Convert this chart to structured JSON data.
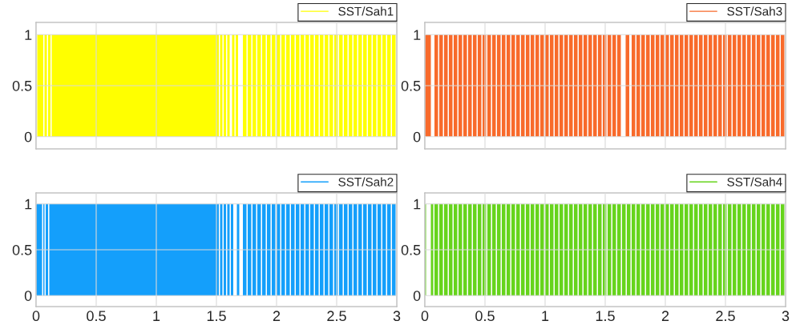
{
  "chart_data": [
    {
      "type": "area",
      "xlim": [
        0,
        3
      ],
      "ylim": [
        -0.12,
        1.12
      ],
      "xticks": [
        0,
        0.5,
        1,
        1.5,
        2,
        2.5,
        3
      ],
      "yticks": [
        0,
        0.5,
        1
      ],
      "grid": true,
      "legend": "top right",
      "tick_labels": "y",
      "series": [
        {
          "name": "SST/Sah1",
          "color": "#ffff00",
          "x": [
            0,
            0.01,
            0.06,
            0.07,
            0.09,
            0.1,
            0.12,
            0.13,
            1.52,
            1.53,
            1.55,
            1.56,
            1.58,
            1.59,
            1.61,
            1.63,
            1.65,
            1.66,
            1.68,
            1.72,
            1.75,
            1.76,
            1.79,
            1.8,
            1.83,
            1.84,
            1.87,
            1.88,
            1.91,
            1.92,
            1.95,
            1.96,
            1.99,
            2,
            2.03,
            2.04,
            2.07,
            2.08,
            2.11,
            2.12,
            2.15,
            2.16,
            2.19,
            2.2,
            2.23,
            2.24,
            2.27,
            2.28,
            2.31,
            2.32,
            2.35,
            2.36,
            2.39,
            2.4,
            2.43,
            2.44,
            2.47,
            2.48,
            2.51,
            2.52,
            2.55,
            2.56,
            2.59,
            2.6,
            2.63,
            2.64,
            2.67,
            2.68,
            2.71,
            2.72,
            2.75,
            2.76,
            2.79,
            2.8,
            2.83,
            2.84,
            2.87,
            2.88,
            2.91,
            2.92,
            2.95,
            2.96,
            2.99
          ],
          "values": [
            0,
            1,
            0,
            1,
            0,
            1,
            0,
            1,
            0,
            1,
            0,
            1,
            0,
            1,
            0,
            1,
            0,
            1,
            0,
            1,
            0,
            1,
            0,
            1,
            0,
            1,
            0,
            1,
            0,
            1,
            0,
            1,
            0,
            1,
            0,
            1,
            0,
            1,
            0,
            1,
            0,
            1,
            0,
            1,
            0,
            1,
            0,
            1,
            0,
            1,
            0,
            1,
            0,
            1,
            0,
            1,
            0,
            1,
            0,
            1,
            0,
            1,
            0,
            1,
            0,
            1,
            0,
            1,
            0,
            1,
            0,
            1,
            0,
            1,
            0,
            1,
            0,
            1,
            0,
            1,
            0,
            1,
            0
          ]
        }
      ]
    },
    {
      "type": "area",
      "xlim": [
        0,
        3
      ],
      "ylim": [
        -0.12,
        1.12
      ],
      "xticks": [
        0,
        0.5,
        1,
        1.5,
        2,
        2.5,
        3
      ],
      "yticks": [
        0,
        0.5,
        1
      ],
      "grid": true,
      "legend": "top right",
      "tick_labels": "y",
      "series": [
        {
          "name": "SST/Sah3",
          "color": "#f86a2b",
          "x": [
            0,
            0.05,
            0.08,
            0.11,
            0.12,
            0.15,
            0.16,
            0.19,
            0.2,
            0.23,
            0.24,
            0.27,
            0.28,
            0.31,
            0.32,
            0.35,
            0.36,
            0.39,
            0.4,
            0.43,
            0.44,
            0.47,
            0.48,
            0.51,
            0.52,
            0.55,
            0.56,
            0.59,
            0.6,
            0.63,
            0.64,
            0.67,
            0.68,
            0.71,
            0.72,
            0.75,
            0.76,
            0.79,
            0.8,
            0.83,
            0.84,
            0.87,
            0.88,
            0.91,
            0.92,
            0.95,
            0.96,
            0.99,
            1,
            1.03,
            1.04,
            1.07,
            1.08,
            1.11,
            1.12,
            1.15,
            1.16,
            1.19,
            1.2,
            1.23,
            1.24,
            1.27,
            1.28,
            1.31,
            1.32,
            1.35,
            1.36,
            1.39,
            1.4,
            1.43,
            1.44,
            1.47,
            1.48,
            1.51,
            1.52,
            1.55,
            1.56,
            1.59,
            1.6,
            1.63,
            1.67,
            1.7,
            1.72,
            1.75,
            1.76,
            1.79,
            1.8,
            1.83,
            1.84,
            1.87,
            1.88,
            1.91,
            1.92,
            1.95,
            1.96,
            1.99,
            2,
            2.03,
            2.04,
            2.07,
            2.08,
            2.11,
            2.12,
            2.15,
            2.16,
            2.19,
            2.2,
            2.23,
            2.24,
            2.27,
            2.28,
            2.31,
            2.32,
            2.35,
            2.36,
            2.39,
            2.4,
            2.43,
            2.44,
            2.47,
            2.48,
            2.51,
            2.52,
            2.55,
            2.56,
            2.59,
            2.6,
            2.63,
            2.64,
            2.67,
            2.68,
            2.71,
            2.72,
            2.75,
            2.76,
            2.79,
            2.8,
            2.83,
            2.84,
            2.87,
            2.88,
            2.91,
            2.92,
            2.95,
            2.96,
            2.99
          ],
          "values": [
            1,
            0,
            1,
            0,
            1,
            0,
            1,
            0,
            1,
            0,
            1,
            0,
            1,
            0,
            1,
            0,
            1,
            0,
            1,
            0,
            1,
            0,
            1,
            0,
            1,
            0,
            1,
            0,
            1,
            0,
            1,
            0,
            1,
            0,
            1,
            0,
            1,
            0,
            1,
            0,
            1,
            0,
            1,
            0,
            1,
            0,
            1,
            0,
            1,
            0,
            1,
            0,
            1,
            0,
            1,
            0,
            1,
            0,
            1,
            0,
            1,
            0,
            1,
            0,
            1,
            0,
            1,
            0,
            1,
            0,
            1,
            0,
            1,
            0,
            1,
            0,
            1,
            0,
            1,
            0,
            1,
            0,
            1,
            0,
            1,
            0,
            1,
            0,
            1,
            0,
            1,
            0,
            1,
            0,
            1,
            0,
            1,
            0,
            1,
            0,
            1,
            0,
            1,
            0,
            1,
            0,
            1,
            0,
            1,
            0,
            1,
            0,
            1,
            0,
            1,
            0,
            1,
            0,
            1,
            0,
            1,
            0,
            1,
            0,
            1,
            0,
            1,
            0,
            1,
            0,
            1,
            0,
            1,
            0,
            1,
            0,
            1,
            0,
            1,
            0,
            1,
            0,
            1,
            0,
            1,
            0
          ]
        }
      ]
    },
    {
      "type": "area",
      "xlim": [
        0,
        3
      ],
      "ylim": [
        -0.12,
        1.12
      ],
      "xticks": [
        0,
        0.5,
        1,
        1.5,
        2,
        2.5,
        3
      ],
      "yticks": [
        0,
        0.5,
        1
      ],
      "grid": true,
      "legend": "top right",
      "series": [
        {
          "name": "SST/Sah2",
          "color": "#149ffb",
          "x": [
            0,
            0.05,
            0.06,
            0.07,
            0.08,
            0.1,
            0.11,
            1.52,
            1.53,
            1.55,
            1.56,
            1.58,
            1.59,
            1.61,
            1.62,
            1.64,
            1.67,
            1.69,
            1.72,
            1.75,
            1.76,
            1.79,
            1.8,
            1.83,
            1.84,
            1.87,
            1.88,
            1.91,
            1.92,
            1.95,
            1.96,
            1.99,
            2,
            2.03,
            2.04,
            2.07,
            2.08,
            2.11,
            2.12,
            2.15,
            2.16,
            2.19,
            2.2,
            2.23,
            2.24,
            2.27,
            2.28,
            2.31,
            2.32,
            2.35,
            2.36,
            2.39,
            2.4,
            2.43,
            2.44,
            2.47,
            2.48,
            2.51,
            2.52,
            2.55,
            2.56,
            2.59,
            2.6,
            2.63,
            2.64,
            2.67,
            2.68,
            2.71,
            2.72,
            2.75,
            2.76,
            2.79,
            2.8,
            2.83,
            2.84,
            2.87,
            2.88,
            2.91,
            2.92,
            2.95,
            2.96,
            2.99
          ],
          "values": [
            1,
            0,
            1,
            0,
            1,
            0,
            1,
            0,
            1,
            0,
            1,
            0,
            1,
            0,
            1,
            0,
            1,
            0,
            1,
            0,
            1,
            0,
            1,
            0,
            1,
            0,
            1,
            0,
            1,
            0,
            1,
            0,
            1,
            0,
            1,
            0,
            1,
            0,
            1,
            0,
            1,
            0,
            1,
            0,
            1,
            0,
            1,
            0,
            1,
            0,
            1,
            0,
            1,
            0,
            1,
            0,
            1,
            0,
            1,
            0,
            1,
            0,
            1,
            0,
            1,
            0,
            1,
            0,
            1,
            0,
            1,
            0,
            1,
            0,
            1,
            0,
            1,
            0,
            1,
            0,
            1,
            0
          ]
        }
      ]
    },
    {
      "type": "area",
      "xlim": [
        0,
        3
      ],
      "ylim": [
        -0.12,
        1.12
      ],
      "xticks": [
        0,
        0.5,
        1,
        1.5,
        2,
        2.5,
        3
      ],
      "yticks": [
        0,
        0.5,
        1
      ],
      "grid": true,
      "legend": "top right",
      "series": [
        {
          "name": "SST/Sah4",
          "color": "#66d41c",
          "x": [
            0,
            0.01,
            0.05,
            0.07,
            0.08,
            0.11,
            0.12,
            0.15,
            0.16,
            0.19,
            0.2,
            0.23,
            0.24,
            0.27,
            0.28,
            0.31,
            0.32,
            0.35,
            0.36,
            0.39,
            0.4,
            0.43,
            0.44,
            0.47,
            0.48,
            0.51,
            0.52,
            0.55,
            0.56,
            0.59,
            0.6,
            0.63,
            0.64,
            0.67,
            0.68,
            0.71,
            0.72,
            0.75,
            0.76,
            0.79,
            0.8,
            0.83,
            0.84,
            0.87,
            0.88,
            0.91,
            0.92,
            0.95,
            0.96,
            0.99,
            1,
            1.03,
            1.04,
            1.07,
            1.08,
            1.11,
            1.12,
            1.15,
            1.16,
            1.19,
            1.2,
            1.23,
            1.24,
            1.27,
            1.28,
            1.31,
            1.32,
            1.35,
            1.36,
            1.39,
            1.4,
            1.43,
            1.44,
            1.47,
            1.48,
            1.51,
            1.52,
            1.55,
            1.56,
            1.59,
            1.6,
            1.63,
            1.64,
            1.67,
            1.68,
            1.71,
            1.72,
            1.75,
            1.76,
            1.79,
            1.8,
            1.83,
            1.84,
            1.87,
            1.88,
            1.91,
            1.92,
            1.95,
            1.96,
            1.99,
            2,
            2.03,
            2.04,
            2.07,
            2.08,
            2.11,
            2.12,
            2.15,
            2.16,
            2.19,
            2.2,
            2.23,
            2.24,
            2.27,
            2.28,
            2.31,
            2.32,
            2.35,
            2.36,
            2.39,
            2.4,
            2.43,
            2.44,
            2.47,
            2.48,
            2.51,
            2.52,
            2.55,
            2.56,
            2.59,
            2.6,
            2.63,
            2.64,
            2.67,
            2.68,
            2.71,
            2.72,
            2.75,
            2.76,
            2.79,
            2.8,
            2.83,
            2.84,
            2.87,
            2.88,
            2.91,
            2.92,
            2.95,
            2.96,
            2.99
          ],
          "values": [
            1,
            0,
            1,
            0,
            1,
            0,
            1,
            0,
            1,
            0,
            1,
            0,
            1,
            0,
            1,
            0,
            1,
            0,
            1,
            0,
            1,
            0,
            1,
            0,
            1,
            0,
            1,
            0,
            1,
            0,
            1,
            0,
            1,
            0,
            1,
            0,
            1,
            0,
            1,
            0,
            1,
            0,
            1,
            0,
            1,
            0,
            1,
            0,
            1,
            0,
            1,
            0,
            1,
            0,
            1,
            0,
            1,
            0,
            1,
            0,
            1,
            0,
            1,
            0,
            1,
            0,
            1,
            0,
            1,
            0,
            1,
            0,
            1,
            0,
            1,
            0,
            1,
            0,
            1,
            0,
            1,
            0,
            1,
            0,
            1,
            0,
            1,
            0,
            1,
            0,
            1,
            0,
            1,
            0,
            1,
            0,
            1,
            0,
            1,
            0,
            1,
            0,
            1,
            0,
            1,
            0,
            1,
            0,
            1,
            0,
            1,
            0,
            1,
            0,
            1,
            0,
            1,
            0,
            1,
            0,
            1,
            0,
            1,
            0,
            1,
            0,
            1,
            0,
            1,
            0,
            1,
            0,
            1,
            0,
            1,
            0,
            1,
            0,
            1,
            0,
            1,
            0,
            1,
            0,
            1,
            0,
            1,
            0,
            1,
            0
          ]
        }
      ]
    }
  ]
}
